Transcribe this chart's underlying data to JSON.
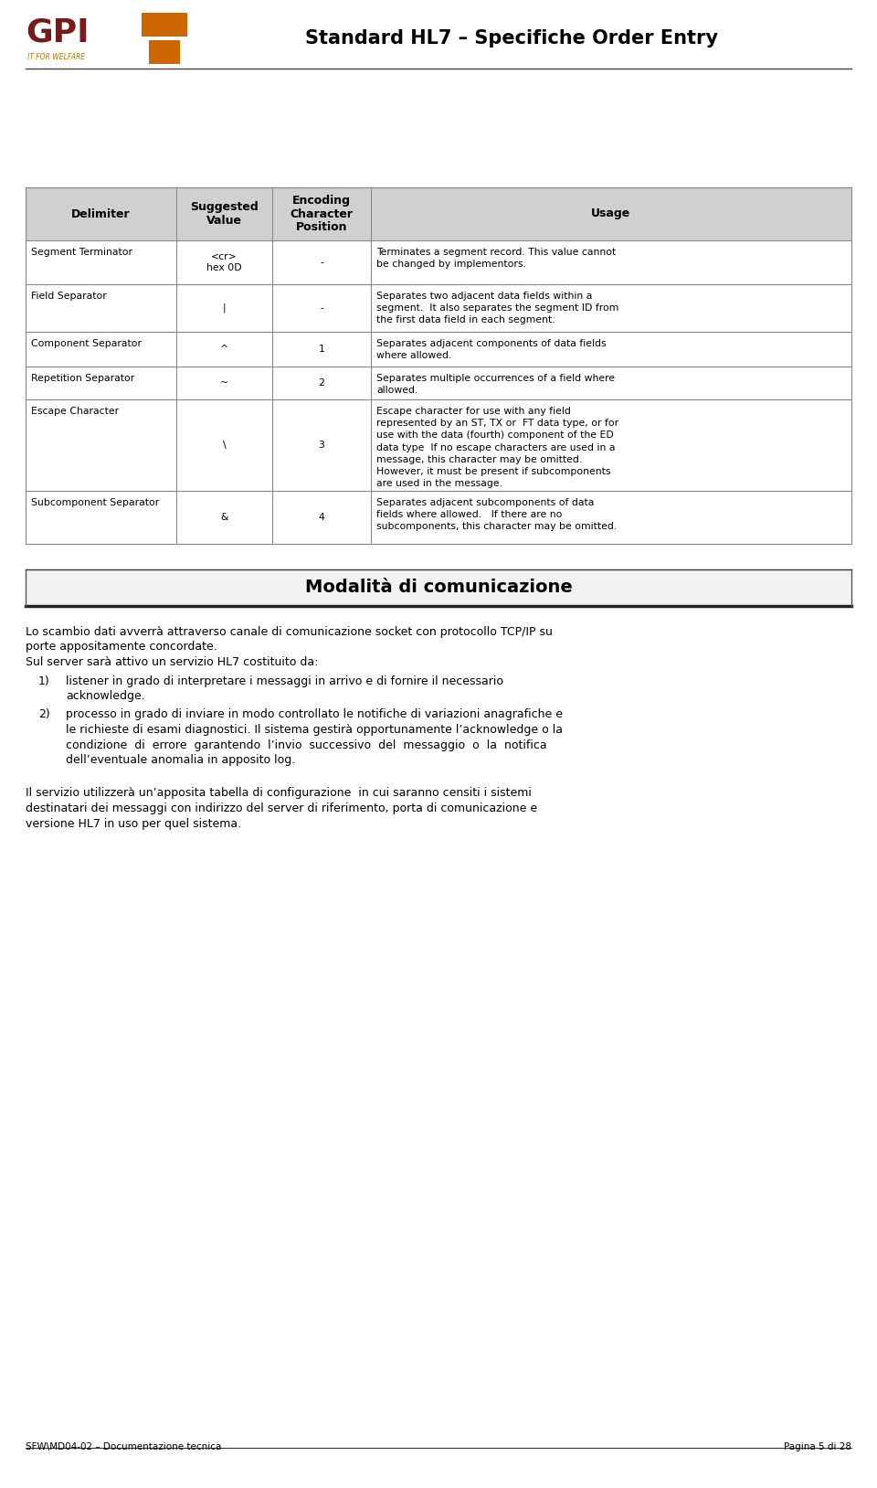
{
  "title": "Standard HL7 – Specifiche Order Entry",
  "page_bg": "#ffffff",
  "header_row": [
    "Delimiter",
    "Suggested\nValue",
    "Encoding\nCharacter\nPosition",
    "Usage"
  ],
  "rows": [
    {
      "delimiter": "Segment Terminator",
      "value": "<cr>\nhex 0D",
      "encoding": "-",
      "usage": "Terminates a segment record. This value cannot\nbe changed by implementors."
    },
    {
      "delimiter": "Field Separator",
      "value": "|",
      "encoding": "-",
      "usage": "Separates two adjacent data fields within a\nsegment.  It also separates the segment ID from\nthe first data field in each segment."
    },
    {
      "delimiter": "Component Separator",
      "value": "^",
      "encoding": "1",
      "usage": "Separates adjacent components of data fields\nwhere allowed."
    },
    {
      "delimiter": "Repetition Separator",
      "value": "~",
      "encoding": "2",
      "usage": "Separates multiple occurrences of a field where\nallowed."
    },
    {
      "delimiter": "Escape Character",
      "value": "\\",
      "encoding": "3",
      "usage": "Escape character for use with any field\nrepresented by an ST, TX or  FT data type, or for\nuse with the data (fourth) component of the ED\ndata type  If no escape characters are used in a\nmessage, this character may be omitted.\nHowever, it must be present if subcomponents\nare used in the message."
    },
    {
      "delimiter": "Subcomponent Separator",
      "value": "&",
      "encoding": "4",
      "usage": "Separates adjacent subcomponents of data\nfields where allowed.   If there are no\nsubcomponents, this character may be omitted."
    }
  ],
  "section_title": "Modalità di comunicazione",
  "body_line1": "Lo scambio dati avverrà attraverso canale di comunicazione socket con protocollo TCP/IP su",
  "body_line2": "porte appositamente concordate.",
  "body_line3": "Sul server sarà attivo un servizio HL7 costituito da:",
  "list_item1_num": "1)",
  "list_item1": "listener in grado di interpretare i messaggi in arrivo e di fornire il necessario",
  "list_item1b": "acknowledge.",
  "list_item2_num": "2)",
  "list_item2": "processo in grado di inviare in modo controllato le notifiche di variazioni anagrafiche e",
  "list_item2b": "le richieste di esami diagnostici. Il sistema gestirà opportunamente l’acknowledge o la",
  "list_item2c": "condizione  di  errore  garantendo  l’invio  successivo  del  messaggio  o  la  notifica",
  "list_item2d": "dell’eventuale anomalia in apposito log.",
  "body2_line1": "Il servizio utilizzerà un’apposita tabella di configurazione  in cui saranno censiti i sistemi",
  "body2_line2": "destinatari dei messaggi con indirizzo del server di riferimento, porta di comunicazione e",
  "body2_line3": "versione HL7 in uso per quel sistema.",
  "footer_left": "SFW\\MD04-02 – Documentazione tecnica",
  "footer_right": "Pagina 5 di 28",
  "logo_gpi_color": "#7a1919",
  "logo_x_color": "#cc6600",
  "table_border": "#888888",
  "header_bg": "#d0d0d0"
}
